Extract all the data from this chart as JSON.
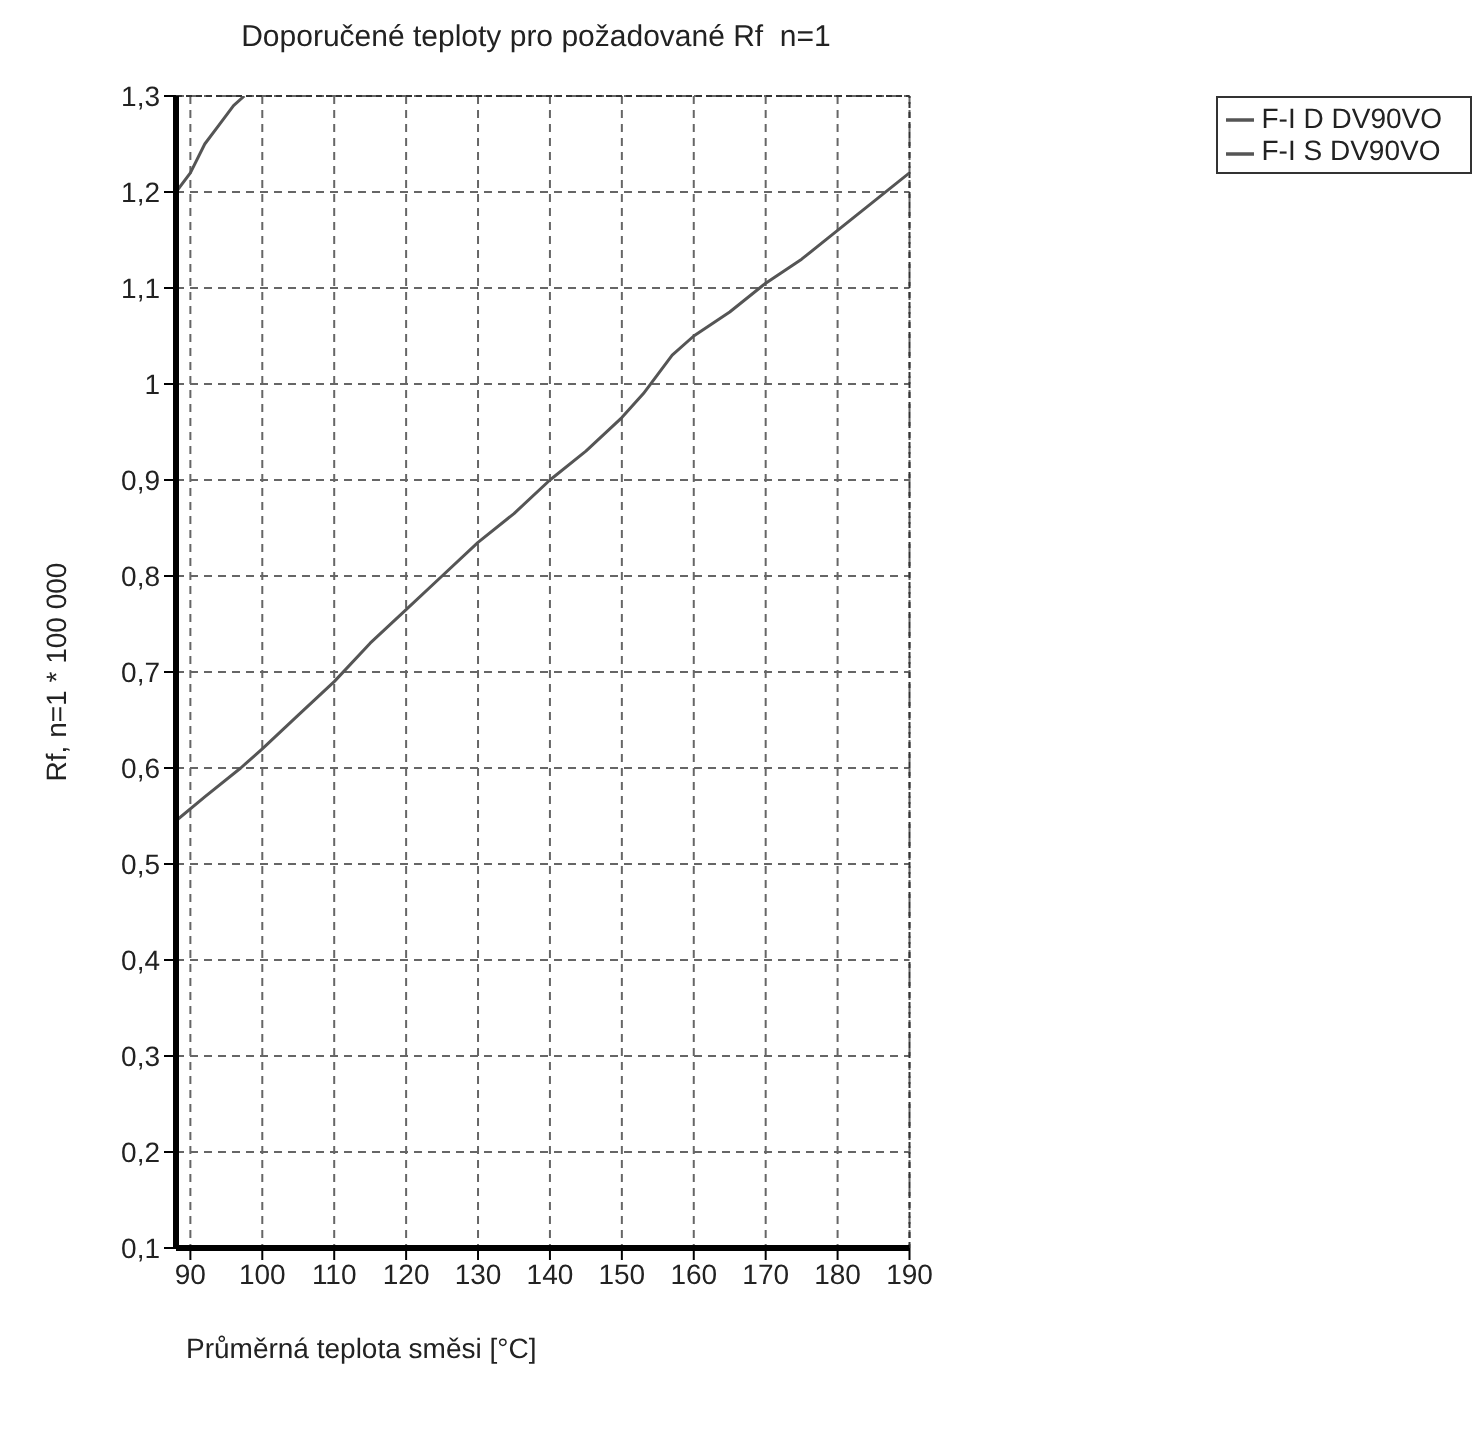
{
  "chart_data": {
    "type": "line",
    "title": "Doporučené teploty pro požadované Rf  n=1",
    "xlabel": "Průměrná teplota směsi [°C]",
    "ylabel": "Rf, n=1 * 100 000",
    "series": [
      {
        "name": "F-I D DV90VO",
        "color": "#555555",
        "x": [
          88,
          90,
          92,
          94,
          96,
          97.5
        ],
        "values": [
          1.2,
          1.22,
          1.25,
          1.27,
          1.29,
          1.3
        ]
      },
      {
        "name": "F-I S DV90VO",
        "color": "#555555",
        "x": [
          88,
          92,
          97,
          100,
          105,
          110,
          115,
          120,
          125,
          130,
          135,
          140,
          145,
          150,
          153,
          155,
          157,
          160,
          165,
          170,
          175,
          180,
          185,
          190
        ],
        "values": [
          0.545,
          0.57,
          0.6,
          0.62,
          0.655,
          0.69,
          0.73,
          0.765,
          0.8,
          0.835,
          0.865,
          0.9,
          0.93,
          0.965,
          0.99,
          1.01,
          1.03,
          1.05,
          1.075,
          1.105,
          1.13,
          1.16,
          1.19,
          1.22
        ]
      }
    ],
    "xlim": [
      88,
      190
    ],
    "xticks": [
      90,
      100,
      110,
      120,
      130,
      140,
      150,
      160,
      170,
      180,
      190
    ],
    "ylim": [
      0.1,
      1.3
    ],
    "yticks": [
      {
        "value": 0.1,
        "label": "0,1"
      },
      {
        "value": 0.2,
        "label": "0,2"
      },
      {
        "value": 0.3,
        "label": "0,3"
      },
      {
        "value": 0.4,
        "label": "0,4"
      },
      {
        "value": 0.5,
        "label": "0,5"
      },
      {
        "value": 0.6,
        "label": "0,6"
      },
      {
        "value": 0.7,
        "label": "0,7"
      },
      {
        "value": 0.8,
        "label": "0,8"
      },
      {
        "value": 0.9,
        "label": "0,9"
      },
      1,
      {
        "value": 1.1,
        "label": "1,1"
      },
      {
        "value": 1.2,
        "label": "1,2"
      },
      {
        "value": 1.3,
        "label": "1,3"
      }
    ],
    "grid": true,
    "legend": "top right",
    "marker": "none",
    "line_style": "solid"
  }
}
